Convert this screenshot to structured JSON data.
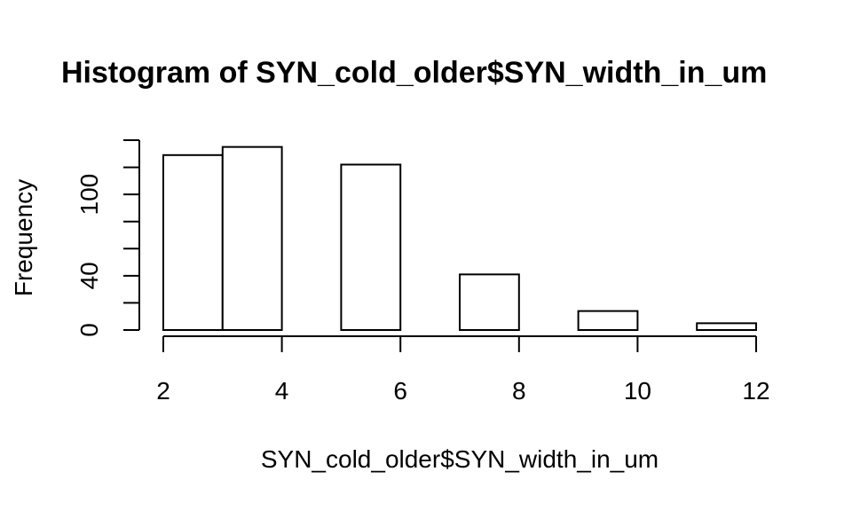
{
  "chart_data": {
    "type": "bar",
    "title": "Histogram of SYN_cold_older$SYN_width_in_um",
    "xlabel": "SYN_cold_older$SYN_width_in_um",
    "ylabel": "Frequency",
    "bins": [
      [
        2,
        3
      ],
      [
        3,
        4
      ],
      [
        4,
        5
      ],
      [
        5,
        6
      ],
      [
        6,
        7
      ],
      [
        7,
        8
      ],
      [
        8,
        9
      ],
      [
        9,
        10
      ],
      [
        10,
        11
      ],
      [
        11,
        12
      ]
    ],
    "values": [
      129,
      135,
      0,
      122,
      0,
      41,
      0,
      14,
      0,
      5
    ],
    "xlim": [
      2,
      12
    ],
    "ylim": [
      0,
      140
    ],
    "x_ticks": [
      2,
      4,
      6,
      8,
      10,
      12
    ],
    "y_ticks": [
      0,
      20,
      40,
      60,
      80,
      100,
      120,
      140
    ],
    "y_tick_labels": [
      {
        "value": 0,
        "label": "0"
      },
      {
        "value": 40,
        "label": "40"
      },
      {
        "value": 100,
        "label": "100"
      }
    ],
    "grid": false,
    "bar_fill": "#ffffff",
    "bar_stroke": "#000000"
  }
}
